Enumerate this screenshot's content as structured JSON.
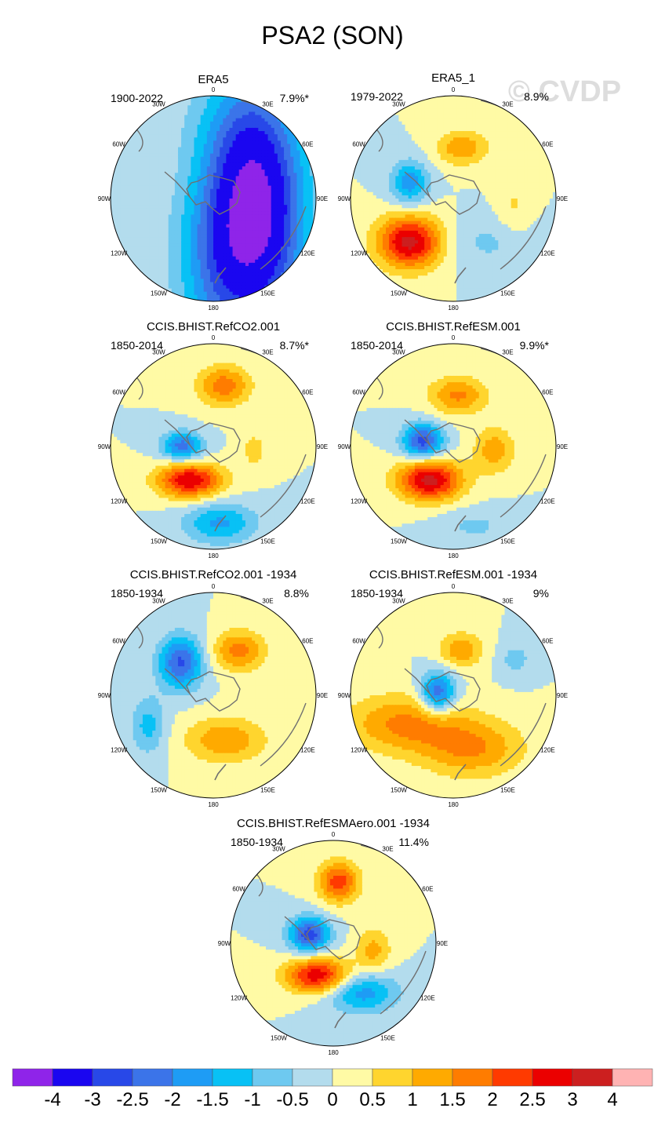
{
  "title": "PSA2 (SON)",
  "watermark": "© CVDP",
  "colors": {
    "ocean_neutral": "#b3dced",
    "land": "#707070",
    "background": "#ffffff"
  },
  "chart_data": {
    "type": "heatmap",
    "projection": "south polar stereographic",
    "longitude_labels": [
      "0",
      "30E",
      "60E",
      "90E",
      "120E",
      "150E",
      "180",
      "150W",
      "120W",
      "90W",
      "60W",
      "30W"
    ],
    "panels": [
      {
        "name": "ERA5",
        "period": "1900-2022",
        "pct_variance": "7.9%*",
        "anomalies": [
          {
            "lon": 110,
            "r": 0.55,
            "amp": -2.8,
            "sx": 0.3,
            "sy": 0.8
          },
          {
            "lon": 170,
            "r": 0.45,
            "amp": -2.2,
            "sx": 0.3,
            "sy": 0.85
          },
          {
            "lon": 50,
            "r": 0.45,
            "amp": -1.3,
            "sx": 0.28,
            "sy": 0.7
          },
          {
            "lon": 0,
            "r": 0.15,
            "amp": 0.3,
            "sx": 0.3,
            "sy": 0.3
          }
        ]
      },
      {
        "name": "ERA5_1",
        "period": "1979-2022",
        "pct_variance": "8.9%",
        "anomalies": [
          {
            "lon": -135,
            "r": 0.6,
            "amp": 3.2,
            "sx": 0.22,
            "sy": 0.18
          },
          {
            "lon": -70,
            "r": 0.45,
            "amp": -1.8,
            "sx": 0.13,
            "sy": 0.15
          },
          {
            "lon": 10,
            "r": 0.5,
            "amp": 1.4,
            "sx": 0.18,
            "sy": 0.12
          },
          {
            "lon": 140,
            "r": 0.55,
            "amp": -0.6,
            "sx": 0.3,
            "sy": 0.18
          },
          {
            "lon": 100,
            "r": 0.6,
            "amp": 0.6,
            "sx": 0.12,
            "sy": 0.2
          }
        ]
      },
      {
        "name": "CCIS.BHIST.RefCO2.001",
        "period": "1850-2014",
        "pct_variance": "8.7%*",
        "anomalies": [
          {
            "lon": -145,
            "r": 0.4,
            "amp": 3.0,
            "sx": 0.22,
            "sy": 0.12
          },
          {
            "lon": -90,
            "r": 0.3,
            "amp": -2.3,
            "sx": 0.14,
            "sy": 0.1
          },
          {
            "lon": 10,
            "r": 0.6,
            "amp": 1.8,
            "sx": 0.18,
            "sy": 0.14
          },
          {
            "lon": 175,
            "r": 0.75,
            "amp": -1.6,
            "sx": 0.25,
            "sy": 0.14
          },
          {
            "lon": 95,
            "r": 0.4,
            "amp": 0.7,
            "sx": 0.1,
            "sy": 0.14
          }
        ]
      },
      {
        "name": "CCIS.BHIST.RefESM.001",
        "period": "1850-2014",
        "pct_variance": "9.9%*",
        "anomalies": [
          {
            "lon": -145,
            "r": 0.4,
            "amp": 3.2,
            "sx": 0.22,
            "sy": 0.14
          },
          {
            "lon": -80,
            "r": 0.3,
            "amp": -2.8,
            "sx": 0.14,
            "sy": 0.12
          },
          {
            "lon": 5,
            "r": 0.5,
            "amp": 1.6,
            "sx": 0.2,
            "sy": 0.13
          },
          {
            "lon": 95,
            "r": 0.4,
            "amp": 1.3,
            "sx": 0.14,
            "sy": 0.16
          },
          {
            "lon": 165,
            "r": 0.8,
            "amp": -0.6,
            "sx": 0.25,
            "sy": 0.12
          }
        ]
      },
      {
        "name": "CCIS.BHIST.RefCO2.001 -1934",
        "period": "1850-1934",
        "pct_variance": "8.8%",
        "anomalies": [
          {
            "lon": -45,
            "r": 0.45,
            "amp": -2.6,
            "sx": 0.15,
            "sy": 0.18
          },
          {
            "lon": 30,
            "r": 0.5,
            "amp": 1.7,
            "sx": 0.18,
            "sy": 0.14
          },
          {
            "lon": 165,
            "r": 0.45,
            "amp": 1.4,
            "sx": 0.28,
            "sy": 0.16
          },
          {
            "lon": -115,
            "r": 0.7,
            "amp": -1.2,
            "sx": 0.12,
            "sy": 0.2
          }
        ]
      },
      {
        "name": "CCIS.BHIST.RefESM.001 -1934",
        "period": "1850-1934",
        "pct_variance": "9%",
        "anomalies": [
          {
            "lon": -120,
            "r": 0.55,
            "amp": 1.6,
            "sx": 0.4,
            "sy": 0.2
          },
          {
            "lon": 160,
            "r": 0.55,
            "amp": 1.5,
            "sx": 0.35,
            "sy": 0.2
          },
          {
            "lon": -80,
            "r": 0.15,
            "amp": -2.5,
            "sx": 0.12,
            "sy": 0.14
          },
          {
            "lon": 10,
            "r": 0.45,
            "amp": 1.4,
            "sx": 0.15,
            "sy": 0.12
          },
          {
            "lon": 60,
            "r": 0.7,
            "amp": -0.7,
            "sx": 0.12,
            "sy": 0.12
          }
        ]
      },
      {
        "name": "CCIS.BHIST.RefESMAero.001 -1934",
        "period": "1850-1934",
        "pct_variance": "11.4%",
        "anomalies": [
          {
            "lon": 5,
            "r": 0.6,
            "amp": 2.3,
            "sx": 0.14,
            "sy": 0.14
          },
          {
            "lon": -70,
            "r": 0.25,
            "amp": -2.8,
            "sx": 0.14,
            "sy": 0.12
          },
          {
            "lon": -155,
            "r": 0.35,
            "amp": 3.0,
            "sx": 0.22,
            "sy": 0.12
          },
          {
            "lon": 150,
            "r": 0.55,
            "amp": -1.8,
            "sx": 0.25,
            "sy": 0.14
          },
          {
            "lon": 100,
            "r": 0.4,
            "amp": 1.2,
            "sx": 0.12,
            "sy": 0.15
          }
        ]
      }
    ],
    "colorbar": {
      "tick_labels": [
        "-4",
        "-3",
        "-2.5",
        "-2",
        "-1.5",
        "-1",
        "-0.5",
        "0",
        "0.5",
        "1",
        "1.5",
        "2",
        "2.5",
        "3",
        "4"
      ],
      "levels": [
        -4,
        -3,
        -2.5,
        -2,
        -1.5,
        -1,
        -0.5,
        0,
        0.5,
        1,
        1.5,
        2,
        2.5,
        3,
        4
      ],
      "colors": [
        "#8f24e9",
        "#1a06f0",
        "#2848e8",
        "#3b74e9",
        "#1e9cf5",
        "#08c1f5",
        "#6ec9f0",
        "#b3dced",
        "#fffaa5",
        "#ffd52e",
        "#ffaa00",
        "#ff7c00",
        "#ff3a00",
        "#eb0000",
        "#cc1f1f",
        "#ffb3b3"
      ]
    }
  }
}
